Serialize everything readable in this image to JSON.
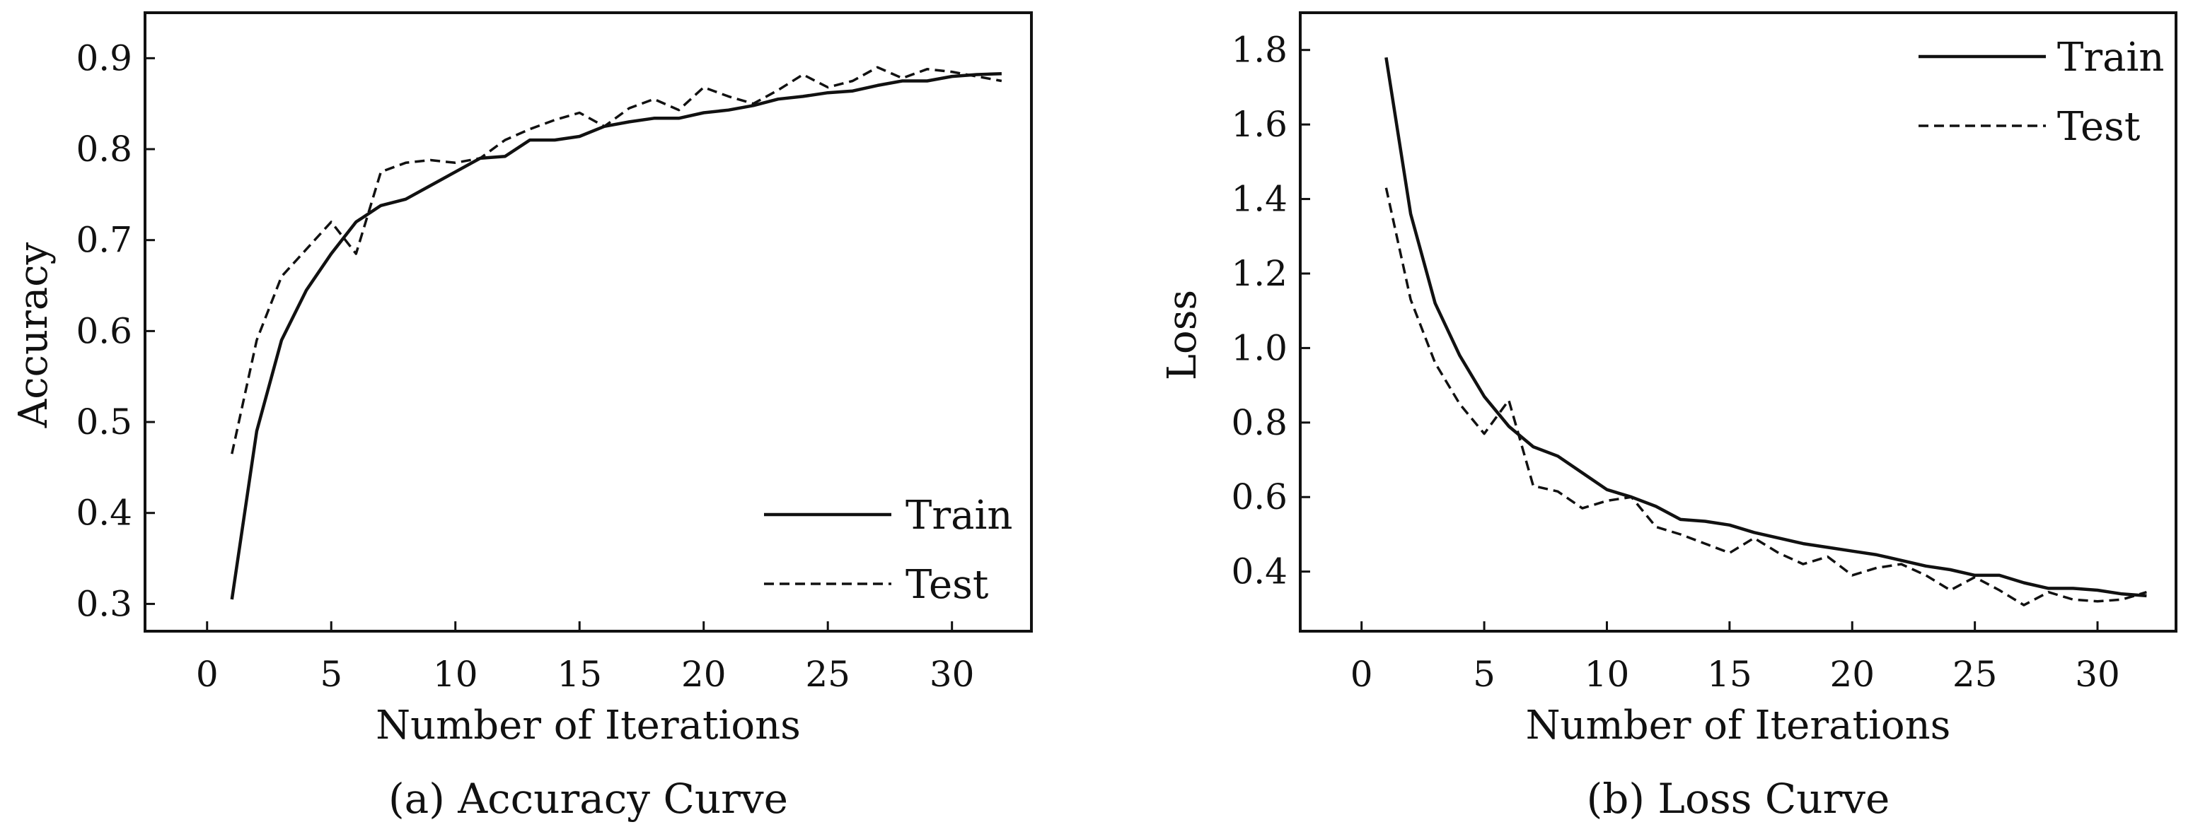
{
  "chart_data": [
    {
      "type": "line",
      "caption": "(a) Accuracy Curve",
      "xlabel": "Number of Iterations",
      "ylabel": "Accuracy",
      "xlim": [
        -2.5,
        33.2
      ],
      "ylim": [
        0.27,
        0.95
      ],
      "xticks": [
        0,
        5,
        10,
        15,
        20,
        25,
        30
      ],
      "yticks": [
        0.3,
        0.4,
        0.5,
        0.6,
        0.7,
        0.8,
        0.9
      ],
      "ytick_labels": [
        "0.3",
        "0.4",
        "0.5",
        "0.6",
        "0.7",
        "0.8",
        "0.9"
      ],
      "legend_position": "lower-right",
      "x": [
        1,
        2,
        3,
        4,
        5,
        6,
        7,
        8,
        9,
        10,
        11,
        12,
        13,
        14,
        15,
        16,
        17,
        18,
        19,
        20,
        21,
        22,
        23,
        24,
        25,
        26,
        27,
        28,
        29,
        30,
        31,
        32
      ],
      "series": [
        {
          "name": "Train",
          "style": "solid",
          "values": [
            0.305,
            0.49,
            0.59,
            0.645,
            0.685,
            0.72,
            0.738,
            0.745,
            0.76,
            0.775,
            0.79,
            0.792,
            0.81,
            0.81,
            0.814,
            0.825,
            0.83,
            0.834,
            0.834,
            0.84,
            0.843,
            0.848,
            0.855,
            0.858,
            0.862,
            0.864,
            0.87,
            0.875,
            0.875,
            0.88,
            0.882,
            0.883
          ]
        },
        {
          "name": "Test",
          "style": "dashed",
          "values": [
            0.465,
            0.59,
            0.66,
            0.69,
            0.72,
            0.685,
            0.775,
            0.785,
            0.788,
            0.785,
            0.79,
            0.81,
            0.822,
            0.832,
            0.84,
            0.825,
            0.845,
            0.855,
            0.843,
            0.868,
            0.858,
            0.85,
            0.865,
            0.882,
            0.868,
            0.875,
            0.89,
            0.878,
            0.888,
            0.885,
            0.88,
            0.875
          ]
        }
      ]
    },
    {
      "type": "line",
      "caption": "(b) Loss Curve",
      "xlabel": "Number of Iterations",
      "ylabel": "Loss",
      "xlim": [
        -2.5,
        33.2
      ],
      "ylim": [
        0.24,
        1.9
      ],
      "xticks": [
        0,
        5,
        10,
        15,
        20,
        25,
        30
      ],
      "yticks": [
        0.4,
        0.6,
        0.8,
        1.0,
        1.2,
        1.4,
        1.6,
        1.8
      ],
      "ytick_labels": [
        "0.4",
        "0.6",
        "0.8",
        "1.0",
        "1.2",
        "1.4",
        "1.6",
        "1.8"
      ],
      "legend_position": "top-right",
      "x": [
        1,
        2,
        3,
        4,
        5,
        6,
        7,
        8,
        9,
        10,
        11,
        12,
        13,
        14,
        15,
        16,
        17,
        18,
        19,
        20,
        21,
        22,
        23,
        24,
        25,
        26,
        27,
        28,
        29,
        30,
        31,
        32
      ],
      "series": [
        {
          "name": "Train",
          "style": "solid",
          "values": [
            1.78,
            1.36,
            1.12,
            0.98,
            0.87,
            0.79,
            0.735,
            0.71,
            0.665,
            0.62,
            0.6,
            0.575,
            0.54,
            0.535,
            0.525,
            0.505,
            0.49,
            0.475,
            0.465,
            0.455,
            0.445,
            0.43,
            0.415,
            0.405,
            0.39,
            0.39,
            0.37,
            0.355,
            0.355,
            0.35,
            0.34,
            0.335
          ]
        },
        {
          "name": "Test",
          "style": "dashed",
          "values": [
            1.43,
            1.13,
            0.96,
            0.85,
            0.77,
            0.86,
            0.63,
            0.615,
            0.57,
            0.59,
            0.6,
            0.52,
            0.5,
            0.475,
            0.45,
            0.49,
            0.45,
            0.42,
            0.44,
            0.39,
            0.41,
            0.42,
            0.39,
            0.35,
            0.385,
            0.35,
            0.31,
            0.345,
            0.325,
            0.32,
            0.325,
            0.345
          ]
        }
      ]
    }
  ]
}
